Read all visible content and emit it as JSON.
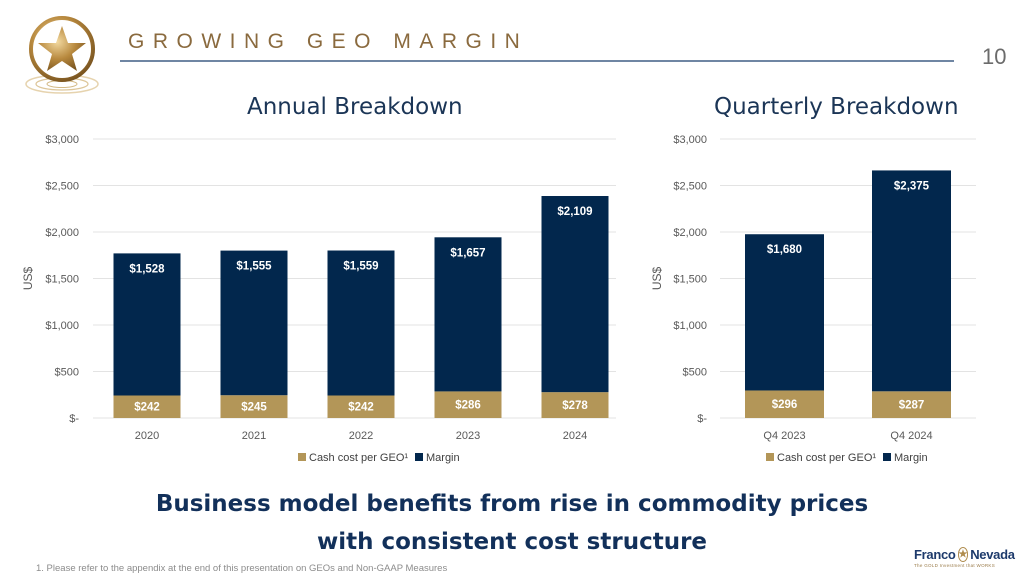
{
  "slide": {
    "title": "GROWING GEO MARGIN",
    "page_number": "10",
    "tagline_line1": "Business model benefits from rise in commodity prices",
    "tagline_line2": "with consistent cost structure",
    "footnote": "1. Please refer to the appendix at the end of this presentation on GEOs and Non-GAAP Measures",
    "brand": {
      "name_left": "Franco",
      "name_right": "Nevada",
      "subtitle": "The GOLD Investment that WORKS"
    },
    "colors": {
      "cash_cost": "#b39658",
      "margin": "#02274d",
      "title": "#8a6a3e",
      "heading": "#1b3556"
    }
  },
  "chart_data": [
    {
      "type": "bar",
      "stacked": true,
      "title": "Annual Breakdown",
      "xlabel": "",
      "ylabel": "US$",
      "ylim": [
        0,
        3000
      ],
      "yticks": [
        0,
        500,
        1000,
        1500,
        2000,
        2500,
        3000
      ],
      "ytick_labels": [
        "$-",
        "$500",
        "$1,000",
        "$1,500",
        "$2,000",
        "$2,500",
        "$3,000"
      ],
      "grid": true,
      "categories": [
        "2020",
        "2021",
        "2022",
        "2023",
        "2024"
      ],
      "series": [
        {
          "name": "Cash cost per GEO¹",
          "color": "#b39658",
          "values": [
            242,
            245,
            242,
            286,
            278
          ],
          "labels": [
            "$242",
            "$245",
            "$242",
            "$286",
            "$278"
          ]
        },
        {
          "name": "Margin",
          "color": "#02274d",
          "values": [
            1528,
            1555,
            1559,
            1657,
            2109
          ],
          "labels": [
            "$1,528",
            "$1,555",
            "$1,559",
            "$1,657",
            "$2,109"
          ]
        }
      ],
      "legend": "bottom"
    },
    {
      "type": "bar",
      "stacked": true,
      "title": "Quarterly Breakdown",
      "xlabel": "",
      "ylabel": "US$",
      "ylim": [
        0,
        3000
      ],
      "yticks": [
        0,
        500,
        1000,
        1500,
        2000,
        2500,
        3000
      ],
      "ytick_labels": [
        "$-",
        "$500",
        "$1,000",
        "$1,500",
        "$2,000",
        "$2,500",
        "$3,000"
      ],
      "grid": true,
      "categories": [
        "Q4 2023",
        "Q4 2024"
      ],
      "series": [
        {
          "name": "Cash cost per GEO¹",
          "color": "#b39658",
          "values": [
            296,
            287
          ],
          "labels": [
            "$296",
            "$287"
          ]
        },
        {
          "name": "Margin",
          "color": "#02274d",
          "values": [
            1680,
            2375
          ],
          "labels": [
            "$1,680",
            "$2,375"
          ]
        }
      ],
      "legend": "bottom"
    }
  ]
}
